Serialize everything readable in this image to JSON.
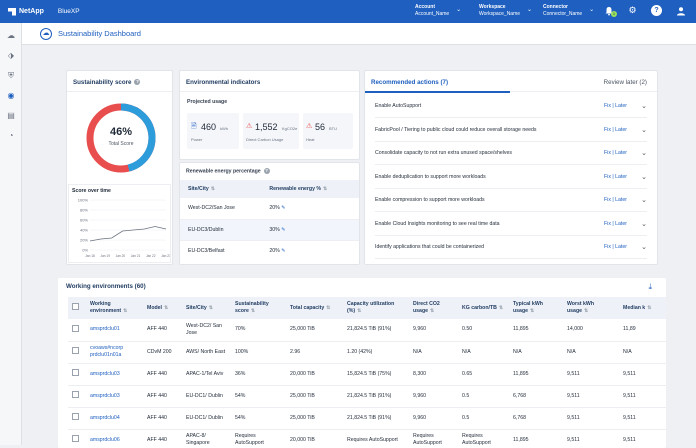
{
  "topbar": {
    "logo": "NetApp",
    "product": "BlueXP",
    "account_label": "Account",
    "account_value": "Account_Name",
    "workspace_label": "Workspace",
    "workspace_value": "Workspace_Name",
    "connector_label": "Connector",
    "connector_value": "Connector_Name",
    "notif_count": "1",
    "help_label": "?"
  },
  "header": {
    "title": "Sustainability Dashboard"
  },
  "score": {
    "title": "Sustainability score",
    "value": 46,
    "value_text": "46%",
    "label": "Total Score",
    "over_time_title": "Score over time",
    "y_ticks": [
      "100%",
      "80%",
      "60%",
      "40%",
      "20%",
      "0%"
    ],
    "x_ticks": [
      "Jan 18",
      "Jan 19",
      "Jan 20",
      "Jan 21",
      "Jan 22",
      "Jan 23"
    ],
    "series": [
      18,
      22,
      24,
      38,
      40,
      42,
      47,
      42
    ]
  },
  "env": {
    "title": "Environmental indicators",
    "projected_title": "Projected usage",
    "power_value": "460",
    "power_unit": "kWh",
    "power_label": "Power",
    "carbon_value": "1,552",
    "carbon_unit": "KgCO2e",
    "carbon_label": "Direct Carbon Usage",
    "heat_value": "56",
    "heat_unit": "BTU",
    "heat_label": "Heat",
    "renewable_title": "Renewable energy percentage",
    "col_site": "Site/City",
    "col_renew": "Renewable energy %",
    "rows": [
      {
        "site": "West-DC2/San Jose",
        "pct": "20%"
      },
      {
        "site": "EU-DC3/Dublin",
        "pct": "30%"
      },
      {
        "site": "EU-DC3/Belfast",
        "pct": "20%"
      }
    ]
  },
  "actions": {
    "title": "Recommended actions (7)",
    "review": "Review later (2)",
    "link": "Fix | Later",
    "items": [
      "Enable AutoSupport",
      "FabricPool / Tiering to public cloud could reduce overall storage needs",
      "Consolidate capacity to not run extra unused space/shelves",
      "Enable deduplication to support more workloads",
      "Enable compression to support more workloads",
      "Enable Cloud Insights monitoring to see real time data",
      "Identify applications that could be containerized"
    ]
  },
  "we": {
    "title": "Working environments (60)",
    "columns": [
      "Working environment",
      "Model",
      "Site/City",
      "Sustainability score",
      "Total capacity",
      "Capacity utilization (%)",
      "Direct CO2 usage",
      "KG carbon/TB",
      "Typical kWh usage",
      "Worst kWh usage",
      "Median k"
    ],
    "rows": [
      [
        "amsprdclu01",
        "AFF 440",
        "West-DC2/ San Jose",
        "70%",
        "25,000 TiB",
        "21,824.5 TiB (91%)",
        "9,960",
        "0.50",
        "11,895",
        "14,000",
        "11,89"
      ],
      [
        "cvoaws#ncorp prdclu01n01a",
        "CDvM 200",
        "AWS/ North East",
        "100%",
        "2.96",
        "1.20 (42%)",
        "N/A",
        "N/A",
        "N/A",
        "N/A",
        "N/A"
      ],
      [
        "amsprdclu03",
        "AFF 440",
        "APAC-1/Tel Aviv",
        "36%",
        "20,000 TiB",
        "15,824.5 TiB (75%)",
        "8,300",
        "0.65",
        "11,895",
        "9,511",
        "9,511"
      ],
      [
        "amsprdclu03",
        "AFF 440",
        "EU-DC1/ Dublin",
        "54%",
        "25,000 TiB",
        "21,824.5 TiB (91%)",
        "9,960",
        "0.5",
        "6,768",
        "9,511",
        "9,511"
      ],
      [
        "amsprdclu04",
        "AFF 440",
        "EU-DC1/ Dublin",
        "54%",
        "25,000 TiB",
        "21,824.5 TiB (91%)",
        "9,960",
        "0.5",
        "6,768",
        "9,511",
        "9,511"
      ],
      [
        "amsprdclu06",
        "AFF 440",
        "APAC-8/ Singapore",
        "Requires AutoSupport",
        "20,000 TiB",
        "Requires AutoSupport",
        "Requires AutoSupport",
        "Requires AutoSupport",
        "11,895",
        "9,511",
        "9,511"
      ]
    ]
  },
  "colors": {
    "accent": "#1e5fbf",
    "donut_blue": "#2d9cdb",
    "donut_red": "#e94e4e"
  }
}
